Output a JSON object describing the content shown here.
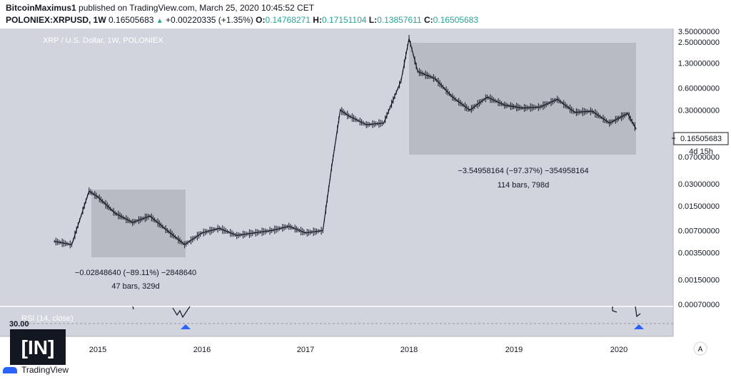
{
  "header": {
    "author": "BitcoinMaximus1",
    "published_text": "published on TradingView.com, March 25, 2020 10:45:52 CET",
    "symbol": "POLONIEX:XRPUSD, 1W",
    "last_price": "0.16505683",
    "change": "+0.00220335 (+1.35%)",
    "open_label": "O:",
    "open": "0.14768271",
    "high_label": "H:",
    "high": "0.17151104",
    "low_label": "L:",
    "low": "0.13857611",
    "close_label": "C:",
    "close": "0.16505683"
  },
  "chart_data": {
    "type": "candlestick",
    "title": "XRP / U.S. Dollar, 1W, POLONIEX",
    "y_scale": "log",
    "y_tick_labels": [
      "3.50000000",
      "2.50000000",
      "1.30000000",
      "0.60000000",
      "0.30000000",
      "0.07000000",
      "0.03000000",
      "0.01500000",
      "0.00700000",
      "0.00350000",
      "0.00150000",
      "0.00070000"
    ],
    "y_ticks": [
      3.5,
      2.5,
      1.3,
      0.6,
      0.3,
      0.07,
      0.03,
      0.015,
      0.007,
      0.0035,
      0.0015,
      0.0007
    ],
    "x_tick_labels": [
      "2015",
      "2016",
      "2017",
      "2018",
      "2019",
      "2020"
    ],
    "current_price_label": "0.16505683",
    "countdown_label": "4d 15h",
    "price_series": {
      "dates": [
        "2014-08",
        "2014-10",
        "2014-12",
        "2015-01",
        "2015-03",
        "2015-05",
        "2015-07",
        "2015-09",
        "2015-11",
        "2016-01",
        "2016-03",
        "2016-05",
        "2016-07",
        "2016-09",
        "2016-11",
        "2017-01",
        "2017-03",
        "2017-04",
        "2017-05",
        "2017-06",
        "2017-08",
        "2017-10",
        "2017-12",
        "2018-01",
        "2018-02",
        "2018-04",
        "2018-06",
        "2018-08",
        "2018-10",
        "2018-12",
        "2019-02",
        "2019-04",
        "2019-06",
        "2019-08",
        "2019-10",
        "2019-12",
        "2020-02",
        "2020-03"
      ],
      "close": [
        0.005,
        0.0045,
        0.024,
        0.02,
        0.012,
        0.009,
        0.011,
        0.007,
        0.0045,
        0.0065,
        0.0075,
        0.006,
        0.0065,
        0.007,
        0.008,
        0.0065,
        0.007,
        0.05,
        0.3,
        0.25,
        0.19,
        0.2,
        0.75,
        2.8,
        1.0,
        0.8,
        0.45,
        0.3,
        0.45,
        0.35,
        0.32,
        0.33,
        0.42,
        0.28,
        0.29,
        0.2,
        0.27,
        0.165
      ]
    },
    "annotations": [
      {
        "line1": "−0.02848640 (−89.11%) −2848640",
        "line2": "47 bars, 329d"
      },
      {
        "line1": "−3.54958164 (−97.37%) −354958164",
        "line2": "114 bars, 798d"
      }
    ],
    "rsi": {
      "label": "RSI (14, close)",
      "level_label": "30.00"
    }
  },
  "footer": {
    "watermark": "[IN]",
    "brand": "TradingView",
    "scale_button": "A"
  },
  "colors": {
    "plot_bg": "#d1d4dc",
    "candles": "#131722",
    "range_box": "#b8bbc2",
    "axis_bg": "#ffffff",
    "signal_arrow": "#2962ff"
  }
}
